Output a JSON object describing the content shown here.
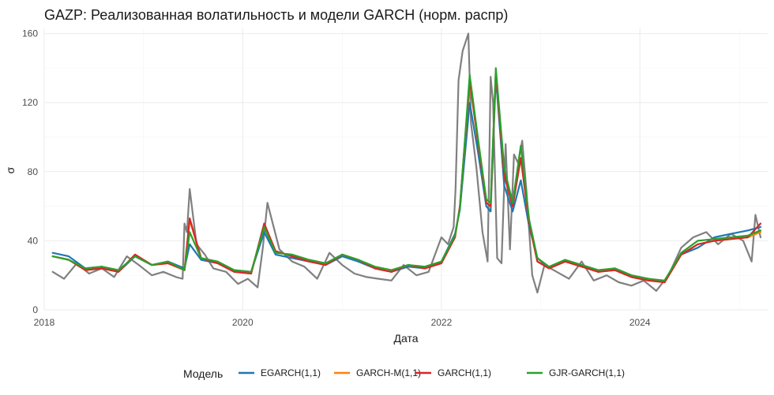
{
  "chart_data": {
    "type": "line",
    "title": "GAZP: Реализованная волатильность и модели GARCH (норм. распр)",
    "xlabel": "Дата",
    "ylabel": "σ",
    "xlim": [
      "2018-01-01",
      "2025-04-15"
    ],
    "ylim": [
      0,
      163
    ],
    "x_ticks": [
      "2018",
      "2020",
      "2022",
      "2024"
    ],
    "y_ticks": [
      0,
      40,
      80,
      120,
      160
    ],
    "grid": true,
    "legend": {
      "title": "Модель",
      "position": "bottom",
      "entries": [
        "EGARCH(1,1)",
        "GARCH-M(1,1)",
        "GARCH(1,1)",
        "GJR-GARCH(1,1)"
      ]
    },
    "colors": {
      "realized": "#808080",
      "EGARCH(1,1)": "#1f77b4",
      "GARCH-M(1,1)": "#ff7f0e",
      "GARCH(1,1)": "#d62728",
      "GJR-GARCH(1,1)": "#2ca02c"
    },
    "realized": {
      "x": [
        "2018-02-01",
        "2018-03-15",
        "2018-05-01",
        "2018-06-15",
        "2018-08-01",
        "2018-09-15",
        "2018-11-01",
        "2018-12-15",
        "2019-02-01",
        "2019-03-15",
        "2019-05-01",
        "2019-05-25",
        "2019-06-01",
        "2019-06-10",
        "2019-06-20",
        "2019-07-15",
        "2019-08-15",
        "2019-09-15",
        "2019-11-01",
        "2019-12-15",
        "2020-01-20",
        "2020-02-25",
        "2020-03-15",
        "2020-04-01",
        "2020-05-15",
        "2020-07-01",
        "2020-08-15",
        "2020-10-01",
        "2020-11-15",
        "2021-01-01",
        "2021-02-15",
        "2021-04-01",
        "2021-05-15",
        "2021-07-01",
        "2021-08-15",
        "2021-10-01",
        "2021-11-15",
        "2022-01-01",
        "2022-01-25",
        "2022-02-15",
        "2022-02-22",
        "2022-03-05",
        "2022-03-20",
        "2022-04-10",
        "2022-04-20",
        "2022-05-10",
        "2022-06-01",
        "2022-06-20",
        "2022-07-01",
        "2022-07-10",
        "2022-07-25",
        "2022-08-10",
        "2022-08-25",
        "2022-09-10",
        "2022-09-25",
        "2022-10-10",
        "2022-10-25",
        "2022-11-10",
        "2022-12-01",
        "2022-12-20",
        "2023-01-15",
        "2023-03-01",
        "2023-04-15",
        "2023-06-01",
        "2023-07-15",
        "2023-09-01",
        "2023-10-15",
        "2023-12-01",
        "2024-01-15",
        "2024-03-01",
        "2024-04-15",
        "2024-06-01",
        "2024-07-15",
        "2024-09-01",
        "2024-10-15",
        "2024-12-01",
        "2025-01-15",
        "2025-02-15",
        "2025-03-01",
        "2025-03-20"
      ],
      "values": [
        22,
        18,
        27,
        21,
        24,
        19,
        31,
        26,
        20,
        22,
        19,
        18,
        50,
        45,
        70,
        38,
        32,
        24,
        22,
        15,
        18,
        13,
        36,
        62,
        35,
        28,
        25,
        18,
        33,
        26,
        21,
        19,
        18,
        17,
        26,
        20,
        22,
        42,
        38,
        48,
        70,
        133,
        150,
        160,
        108,
        82,
        45,
        28,
        135,
        120,
        30,
        27,
        96,
        35,
        90,
        85,
        98,
        68,
        20,
        10,
        26,
        22,
        18,
        28,
        17,
        20,
        16,
        14,
        17,
        11,
        20,
        36,
        42,
        45,
        38,
        44,
        40,
        28,
        55,
        42
      ]
    },
    "series": [
      {
        "name": "EGARCH(1,1)",
        "x": [
          "2018-02-01",
          "2018-04-01",
          "2018-06-01",
          "2018-08-01",
          "2018-10-01",
          "2018-12-01",
          "2019-02-01",
          "2019-04-01",
          "2019-06-01",
          "2019-06-20",
          "2019-08-01",
          "2019-10-01",
          "2019-12-01",
          "2020-02-01",
          "2020-03-20",
          "2020-05-01",
          "2020-07-01",
          "2020-09-01",
          "2020-11-01",
          "2021-01-01",
          "2021-03-01",
          "2021-05-01",
          "2021-07-01",
          "2021-09-01",
          "2021-11-01",
          "2022-01-01",
          "2022-02-20",
          "2022-03-10",
          "2022-04-15",
          "2022-05-15",
          "2022-06-15",
          "2022-07-01",
          "2022-07-20",
          "2022-08-20",
          "2022-09-20",
          "2022-10-20",
          "2022-11-20",
          "2022-12-20",
          "2023-02-01",
          "2023-04-01",
          "2023-06-01",
          "2023-08-01",
          "2023-10-01",
          "2023-12-01",
          "2024-02-01",
          "2024-04-01",
          "2024-06-01",
          "2024-08-01",
          "2024-10-01",
          "2024-12-01",
          "2025-02-01",
          "2025-03-20"
        ],
        "values": [
          33,
          31,
          24,
          25,
          22,
          31,
          26,
          28,
          24,
          38,
          29,
          27,
          23,
          22,
          45,
          32,
          30,
          28,
          26,
          31,
          28,
          24,
          22,
          25,
          24,
          28,
          44,
          58,
          120,
          92,
          60,
          57,
          135,
          72,
          57,
          75,
          48,
          30,
          24,
          28,
          26,
          22,
          24,
          20,
          18,
          16,
          32,
          36,
          42,
          44,
          46,
          48
        ]
      },
      {
        "name": "GARCH-M(1,1)",
        "x": [
          "2018-02-01",
          "2018-04-01",
          "2018-06-01",
          "2018-08-01",
          "2018-10-01",
          "2018-12-01",
          "2019-02-01",
          "2019-04-01",
          "2019-06-01",
          "2019-06-20",
          "2019-08-01",
          "2019-10-01",
          "2019-12-01",
          "2020-02-01",
          "2020-03-20",
          "2020-05-01",
          "2020-07-01",
          "2020-09-01",
          "2020-11-01",
          "2021-01-01",
          "2021-03-01",
          "2021-05-01",
          "2021-07-01",
          "2021-09-01",
          "2021-11-01",
          "2022-01-01",
          "2022-02-20",
          "2022-03-10",
          "2022-04-15",
          "2022-05-15",
          "2022-06-15",
          "2022-07-01",
          "2022-07-20",
          "2022-08-20",
          "2022-09-20",
          "2022-10-20",
          "2022-11-20",
          "2022-12-20",
          "2023-02-01",
          "2023-04-01",
          "2023-06-01",
          "2023-08-01",
          "2023-10-01",
          "2023-12-01",
          "2024-02-01",
          "2024-04-01",
          "2024-06-01",
          "2024-08-01",
          "2024-10-01",
          "2024-12-01",
          "2025-02-01",
          "2025-03-20"
        ],
        "values": [
          31,
          29,
          23,
          24,
          22,
          32,
          26,
          27,
          23,
          52,
          30,
          27,
          22,
          21,
          50,
          34,
          31,
          28,
          26,
          32,
          29,
          24,
          22,
          26,
          24,
          27,
          42,
          60,
          132,
          98,
          62,
          60,
          138,
          78,
          60,
          88,
          50,
          28,
          24,
          28,
          25,
          22,
          23,
          19,
          17,
          16,
          32,
          38,
          40,
          41,
          42,
          45
        ]
      },
      {
        "name": "GARCH(1,1)",
        "x": [
          "2018-02-01",
          "2018-04-01",
          "2018-06-01",
          "2018-08-01",
          "2018-10-01",
          "2018-12-01",
          "2019-02-01",
          "2019-04-01",
          "2019-06-01",
          "2019-06-20",
          "2019-08-01",
          "2019-10-01",
          "2019-12-01",
          "2020-02-01",
          "2020-03-20",
          "2020-05-01",
          "2020-07-01",
          "2020-09-01",
          "2020-11-01",
          "2021-01-01",
          "2021-03-01",
          "2021-05-01",
          "2021-07-01",
          "2021-09-01",
          "2021-11-01",
          "2022-01-01",
          "2022-02-20",
          "2022-03-10",
          "2022-04-15",
          "2022-05-15",
          "2022-06-15",
          "2022-07-01",
          "2022-07-20",
          "2022-08-20",
          "2022-09-20",
          "2022-10-20",
          "2022-11-20",
          "2022-12-20",
          "2023-02-01",
          "2023-04-01",
          "2023-06-01",
          "2023-08-01",
          "2023-10-01",
          "2023-12-01",
          "2024-02-01",
          "2024-04-01",
          "2024-06-01",
          "2024-08-01",
          "2024-10-01",
          "2024-12-01",
          "2025-02-01",
          "2025-03-20"
        ],
        "values": [
          31,
          29,
          23,
          24,
          22,
          32,
          26,
          27,
          23,
          53,
          30,
          27,
          22,
          21,
          50,
          34,
          31,
          28,
          26,
          32,
          29,
          24,
          22,
          26,
          24,
          27,
          42,
          60,
          133,
          98,
          62,
          60,
          138,
          78,
          60,
          88,
          50,
          28,
          24,
          28,
          25,
          22,
          23,
          19,
          17,
          16,
          32,
          38,
          40,
          41,
          42,
          50
        ]
      },
      {
        "name": "GJR-GARCH(1,1)",
        "x": [
          "2018-02-01",
          "2018-04-01",
          "2018-06-01",
          "2018-08-01",
          "2018-10-01",
          "2018-12-01",
          "2019-02-01",
          "2019-04-01",
          "2019-06-01",
          "2019-06-20",
          "2019-08-01",
          "2019-10-01",
          "2019-12-01",
          "2020-02-01",
          "2020-03-20",
          "2020-05-01",
          "2020-07-01",
          "2020-09-01",
          "2020-11-01",
          "2021-01-01",
          "2021-03-01",
          "2021-05-01",
          "2021-07-01",
          "2021-09-01",
          "2021-11-01",
          "2022-01-01",
          "2022-02-20",
          "2022-03-10",
          "2022-04-15",
          "2022-05-15",
          "2022-06-15",
          "2022-07-01",
          "2022-07-20",
          "2022-08-20",
          "2022-09-20",
          "2022-10-20",
          "2022-11-20",
          "2022-12-20",
          "2023-02-01",
          "2023-04-01",
          "2023-06-01",
          "2023-08-01",
          "2023-10-01",
          "2023-12-01",
          "2024-02-01",
          "2024-04-01",
          "2024-06-01",
          "2024-08-01",
          "2024-10-01",
          "2024-12-01",
          "2025-02-01",
          "2025-03-20"
        ],
        "values": [
          31,
          29,
          24,
          25,
          23,
          31,
          26,
          28,
          23,
          45,
          30,
          28,
          23,
          22,
          48,
          33,
          32,
          29,
          27,
          32,
          29,
          25,
          23,
          26,
          25,
          28,
          43,
          59,
          136,
          100,
          64,
          62,
          140,
          82,
          62,
          95,
          52,
          30,
          25,
          29,
          26,
          23,
          24,
          20,
          18,
          17,
          33,
          40,
          41,
          42,
          43,
          46
        ]
      }
    ]
  }
}
